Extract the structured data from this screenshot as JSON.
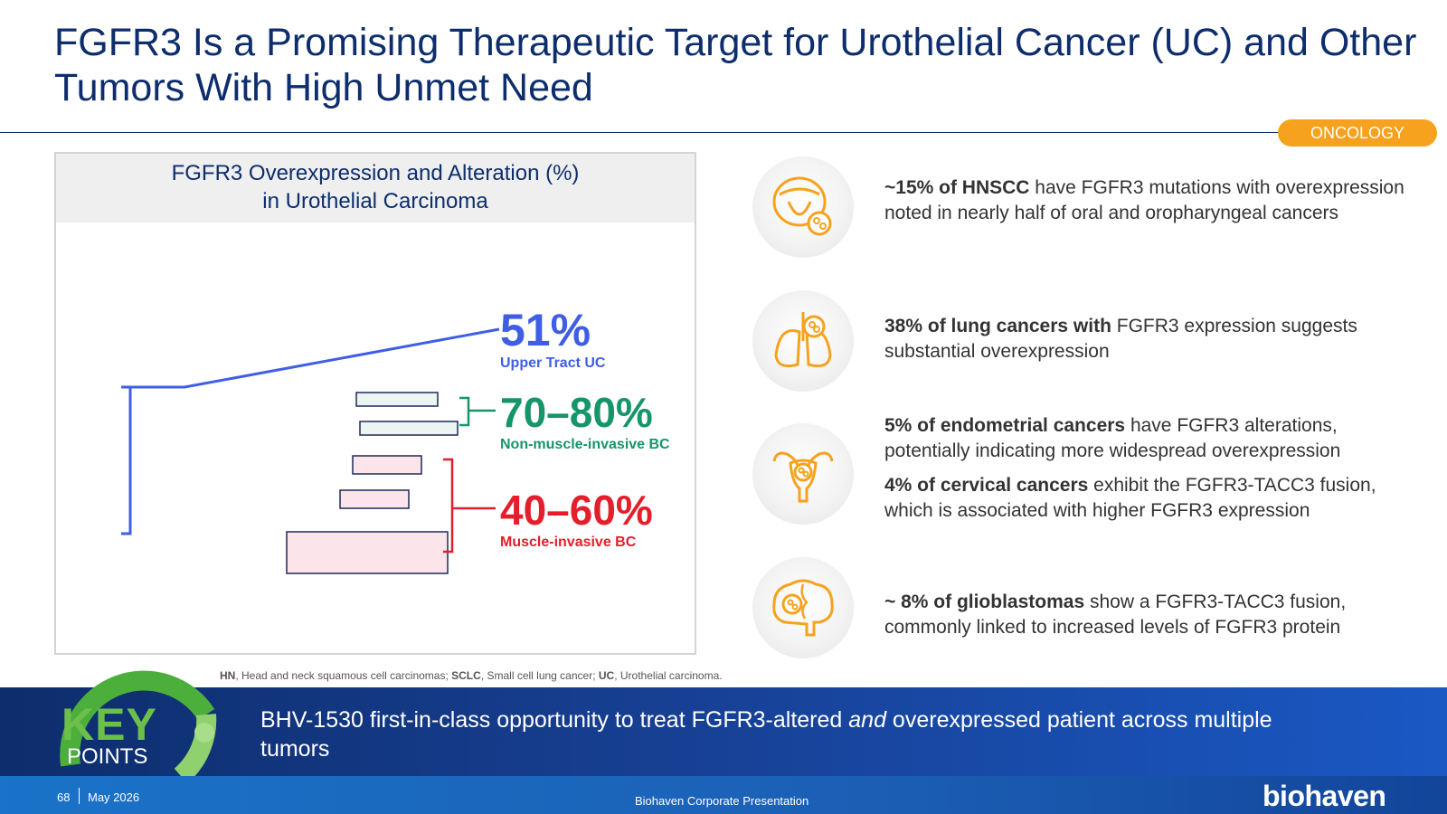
{
  "slide": {
    "title": "FGFR3 Is a Promising Therapeutic Target for Urothelial Cancer (UC) and Other Tumors With High Unmet Need",
    "badge": "ONCOLOGY"
  },
  "chart": {
    "header_line1": "FGFR3 Overexpression and Alteration (%)",
    "header_line2": "in Urothelial Carcinoma",
    "callouts": [
      {
        "value": "51%",
        "label": "Upper Tract UC",
        "color": "#3f5ee3"
      },
      {
        "value": "70–80%",
        "label": "Non-muscle-invasive BC",
        "color": "#17956a"
      },
      {
        "value": "40–60%",
        "label": "Muscle-invasive BC",
        "color": "#e41e2b"
      }
    ]
  },
  "bullets": [
    {
      "icon": "mouth-tumor-icon",
      "bold": "~15% of HNSCC",
      "rest": " have FGFR3 mutations with overexpression noted in nearly half of oral and oropharyngeal cancers"
    },
    {
      "icon": "lungs-tumor-icon",
      "bold": "38% of lung cancers with",
      "rest": " FGFR3 expression suggests substantial overexpression"
    },
    {
      "icon": "uterus-tumor-icon",
      "bold": "5% of endometrial cancers",
      "rest": " have FGFR3 alterations, potentially indicating more widespread overexpression"
    },
    {
      "icon": "uterus-tumor-icon",
      "bold": "4% of cervical cancers",
      "rest": " exhibit the FGFR3-TACC3 fusion, which is associated with higher FGFR3 expression"
    },
    {
      "icon": "brain-tumor-icon",
      "bold": "~ 8% of glioblastomas",
      "rest": " show a FGFR3-TACC3 fusion, commonly linked to increased levels of FGFR3 protein"
    }
  ],
  "footnote": {
    "a_abbr": "HN",
    "a_def": ", Head and neck squamous cell carcinomas; ",
    "b_abbr": "SCLC",
    "b_def": ", Small cell lung cancer; ",
    "c_abbr": "UC",
    "c_def": ", Urothelial carcinoma."
  },
  "key_points": {
    "word1": "KEY",
    "word2": "POINTS",
    "text_a": "BHV-1530 first-in-class opportunity to treat FGFR3-altered ",
    "text_em": "and",
    "text_b": " overexpressed patient across multiple tumors"
  },
  "footer": {
    "page": "68",
    "date": "May 2026",
    "center": "Biohaven Corporate Presentation",
    "logo": "biohaven"
  },
  "colors": {
    "navy": "#0d2d6c",
    "orange": "#f6a21e",
    "green": "#6cc04a"
  }
}
